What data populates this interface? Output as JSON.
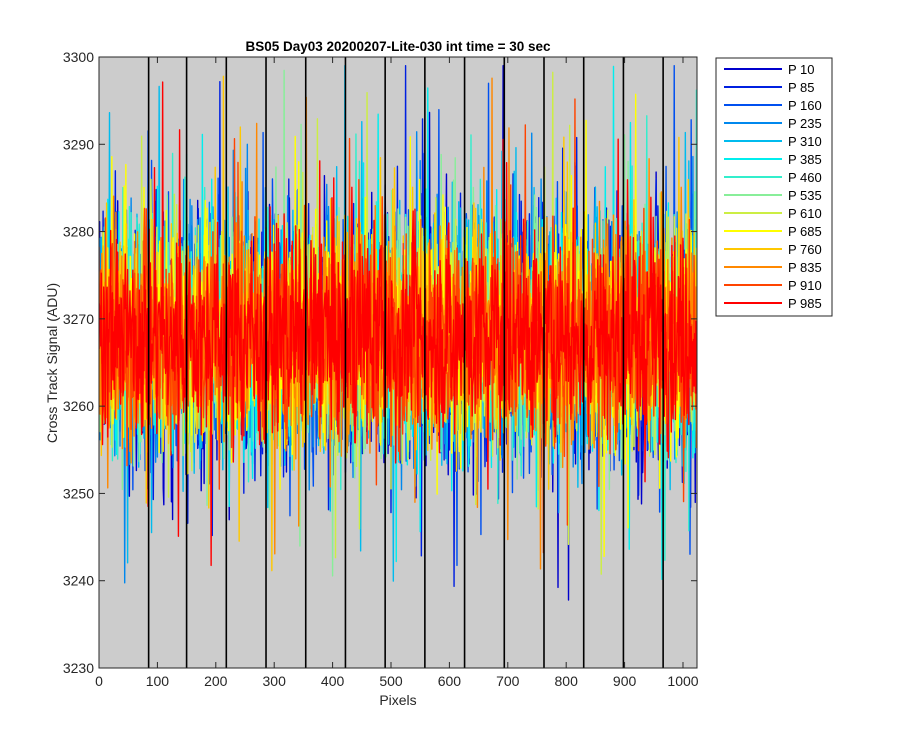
{
  "chart_data": {
    "type": "line",
    "title": "BS05 Day03 20200207-Lite-030 int time = 30 sec",
    "xlabel": "Pixels",
    "ylabel": "Cross Track Signal (ADU)",
    "xlim": [
      0,
      1024
    ],
    "ylim": [
      3230,
      3300
    ],
    "xticks": [
      0,
      100,
      200,
      300,
      400,
      500,
      600,
      700,
      800,
      900,
      1000
    ],
    "yticks": [
      3230,
      3240,
      3250,
      3260,
      3270,
      3280,
      3290,
      3300
    ],
    "vertical_lines": [
      85,
      150,
      218,
      286,
      354,
      422,
      490,
      558,
      626,
      694,
      762,
      830,
      898,
      966
    ],
    "plot_background": "#cccccc",
    "grid": false,
    "legend_position": "outside-top-right",
    "approx_mean": 3268,
    "approx_noise_range": [
      3235,
      3299
    ],
    "series": [
      {
        "name": "P 10",
        "color": "#0000cc"
      },
      {
        "name": "P 85",
        "color": "#0020e0"
      },
      {
        "name": "P 160",
        "color": "#0050f0"
      },
      {
        "name": "P 235",
        "color": "#0088ee"
      },
      {
        "name": "P 310",
        "color": "#00bbee"
      },
      {
        "name": "P 385",
        "color": "#00eeee"
      },
      {
        "name": "P 460",
        "color": "#33eecc"
      },
      {
        "name": "P 535",
        "color": "#88ee99"
      },
      {
        "name": "P 610",
        "color": "#ccee44"
      },
      {
        "name": "P 685",
        "color": "#ffff00"
      },
      {
        "name": "P 760",
        "color": "#ffc800"
      },
      {
        "name": "P 835",
        "color": "#ff8800"
      },
      {
        "name": "P 910",
        "color": "#ff4400"
      },
      {
        "name": "P 985",
        "color": "#ff0000"
      }
    ]
  }
}
